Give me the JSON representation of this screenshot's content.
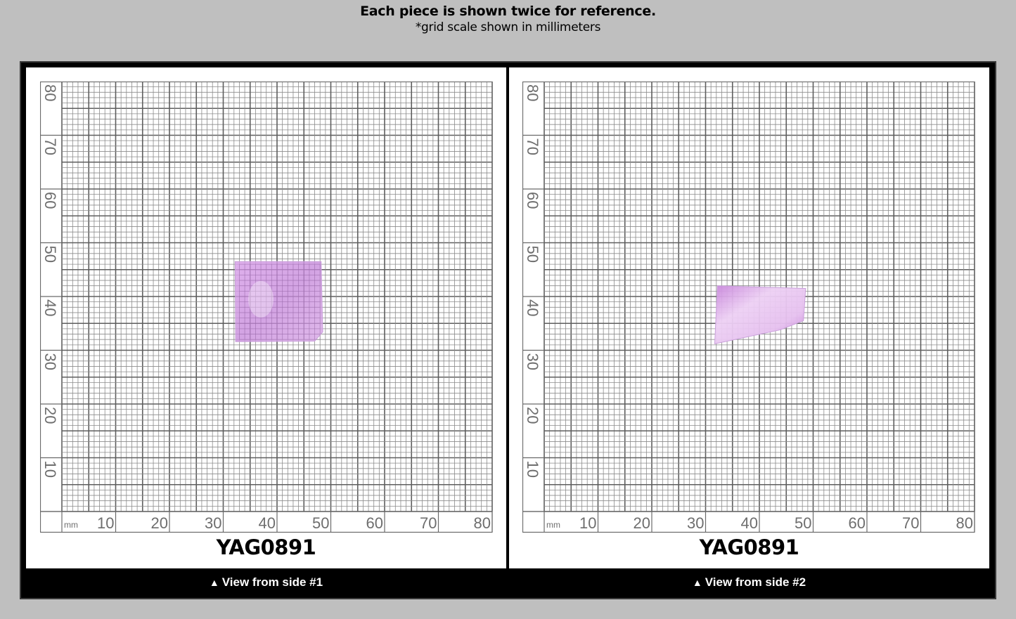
{
  "header": {
    "title": "Each piece is shown twice for reference.",
    "subtitle": "*grid scale shown in millimeters"
  },
  "grid": {
    "unit_label": "mm",
    "x_ticks": [
      "10",
      "20",
      "30",
      "40",
      "50",
      "60",
      "70",
      "80"
    ],
    "y_ticks": [
      "80",
      "70",
      "60",
      "50",
      "40",
      "30",
      "20",
      "10"
    ],
    "range_mm": [
      0,
      80
    ],
    "minor_step_mm": 1,
    "major_step_mm": 5,
    "label_step_mm": 10
  },
  "panels": [
    {
      "sample_id": "YAG0891",
      "caption_icon": "triangle-up-icon",
      "caption_icon_glyph": "▲",
      "caption": "View from side #1",
      "crystal_color": "#d8a6e6",
      "crystal_extent_mm": {
        "x": [
          32,
          48.5
        ],
        "y": [
          31.5,
          46.5
        ]
      }
    },
    {
      "sample_id": "YAG0891",
      "caption_icon": "triangle-up-icon",
      "caption_icon_glyph": "▲",
      "caption": "View from side #2",
      "crystal_color": "#e2b5ee",
      "crystal_extent_mm": {
        "x": [
          31.5,
          48
        ],
        "y": [
          30.5,
          41.5
        ]
      }
    }
  ],
  "colors": {
    "page_bg": "#bfbfbf",
    "frame": "#000000",
    "panel_bg": "#ffffff",
    "grid_line": "#7a7a7a",
    "label_text": "#6e6e6e"
  }
}
